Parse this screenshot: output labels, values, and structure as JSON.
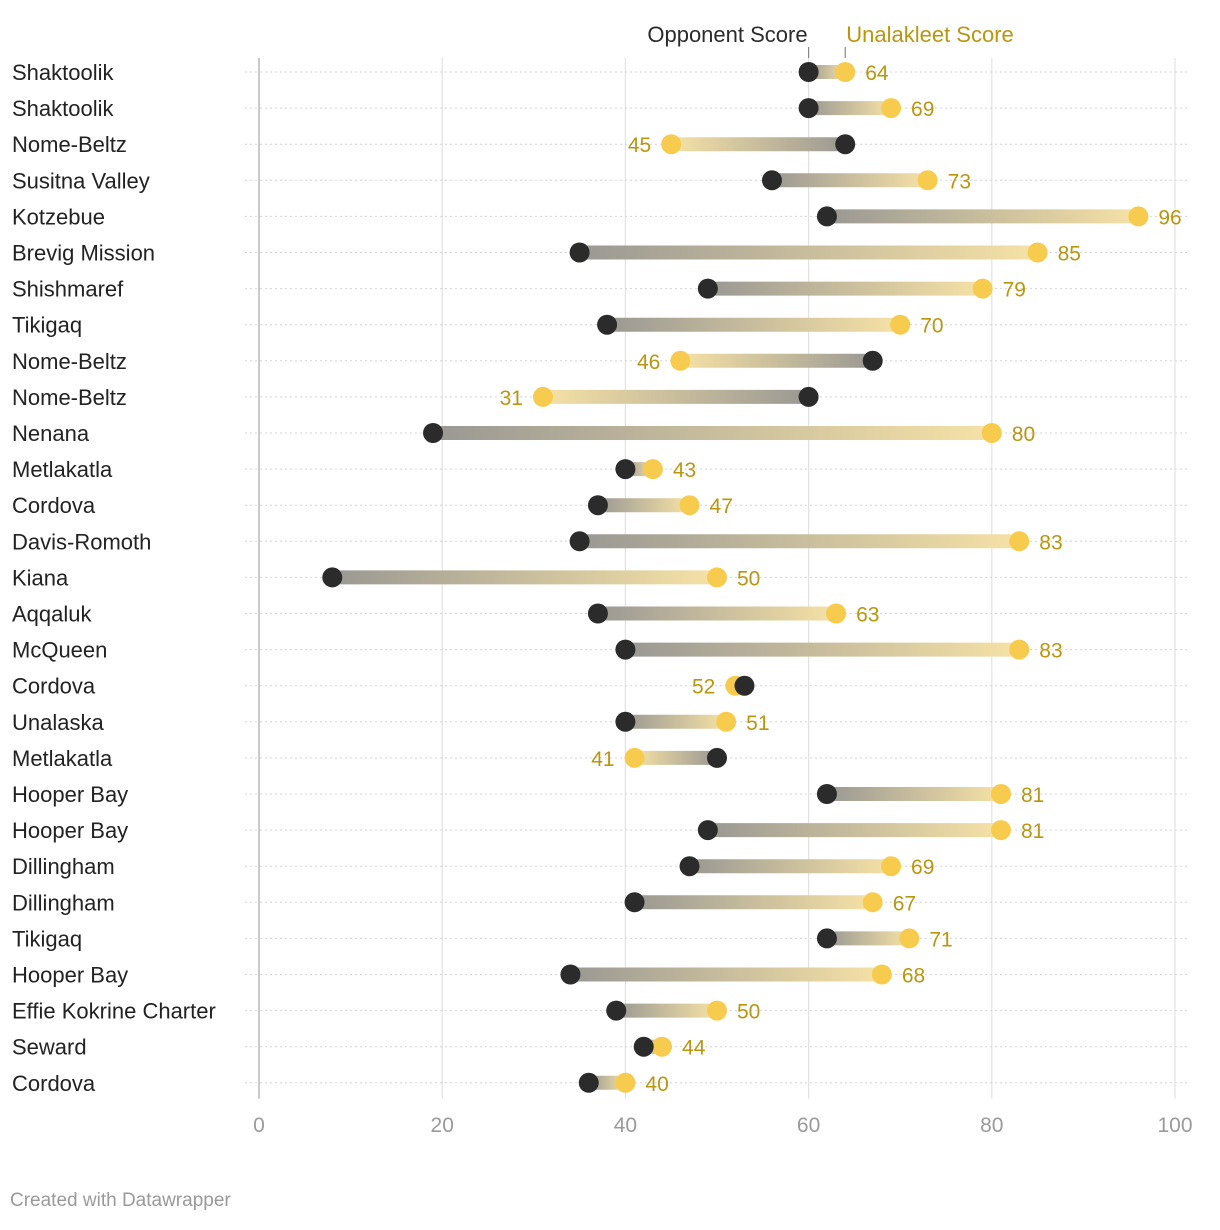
{
  "chart_data": {
    "type": "dot",
    "title": "",
    "legend": {
      "opponent_label": "Opponent Score",
      "unalakleet_label": "Unalakleet Score",
      "placement": "top"
    },
    "xlim": [
      0,
      100
    ],
    "x_ticks": [
      0,
      20,
      40,
      60,
      80,
      100
    ],
    "grid": true,
    "categories": [
      "Shaktoolik",
      "Shaktoolik",
      "Nome-Beltz",
      "Susitna Valley",
      "Kotzebue",
      "Brevig Mission",
      "Shishmaref",
      "Tikigaq",
      "Nome-Beltz",
      "Nome-Beltz",
      "Nenana",
      "Metlakatla",
      "Cordova",
      "Davis-Romoth",
      "Kiana",
      "Aqqaluk",
      "McQueen",
      "Cordova",
      "Unalaska",
      "Metlakatla",
      "Hooper Bay",
      "Hooper Bay",
      "Dillingham",
      "Dillingham",
      "Tikigaq",
      "Hooper Bay",
      "Effie Kokrine Charter",
      "Seward",
      "Cordova"
    ],
    "series": [
      {
        "name": "Opponent Score",
        "values": [
          60,
          60,
          64,
          56,
          62,
          35,
          49,
          38,
          67,
          60,
          19,
          40,
          37,
          35,
          8,
          37,
          40,
          53,
          40,
          50,
          62,
          49,
          47,
          41,
          62,
          34,
          39,
          42,
          36
        ]
      },
      {
        "name": "Unalakleet Score",
        "values": [
          64,
          69,
          45,
          73,
          96,
          85,
          79,
          70,
          46,
          31,
          80,
          43,
          47,
          83,
          50,
          63,
          83,
          52,
          51,
          41,
          81,
          81,
          69,
          67,
          71,
          68,
          50,
          44,
          40
        ]
      }
    ],
    "colors": {
      "opponent": "#2b2b2b",
      "unalakleet": "#f7cc4e",
      "unalakleet_text": "#b8960f",
      "bar_dark": "#9a9893",
      "bar_light": "#f6e2a6",
      "grid": "#e2e2e2",
      "axis_text": "#9a9a9a"
    }
  },
  "footer": {
    "credit": "Created with Datawrapper"
  }
}
